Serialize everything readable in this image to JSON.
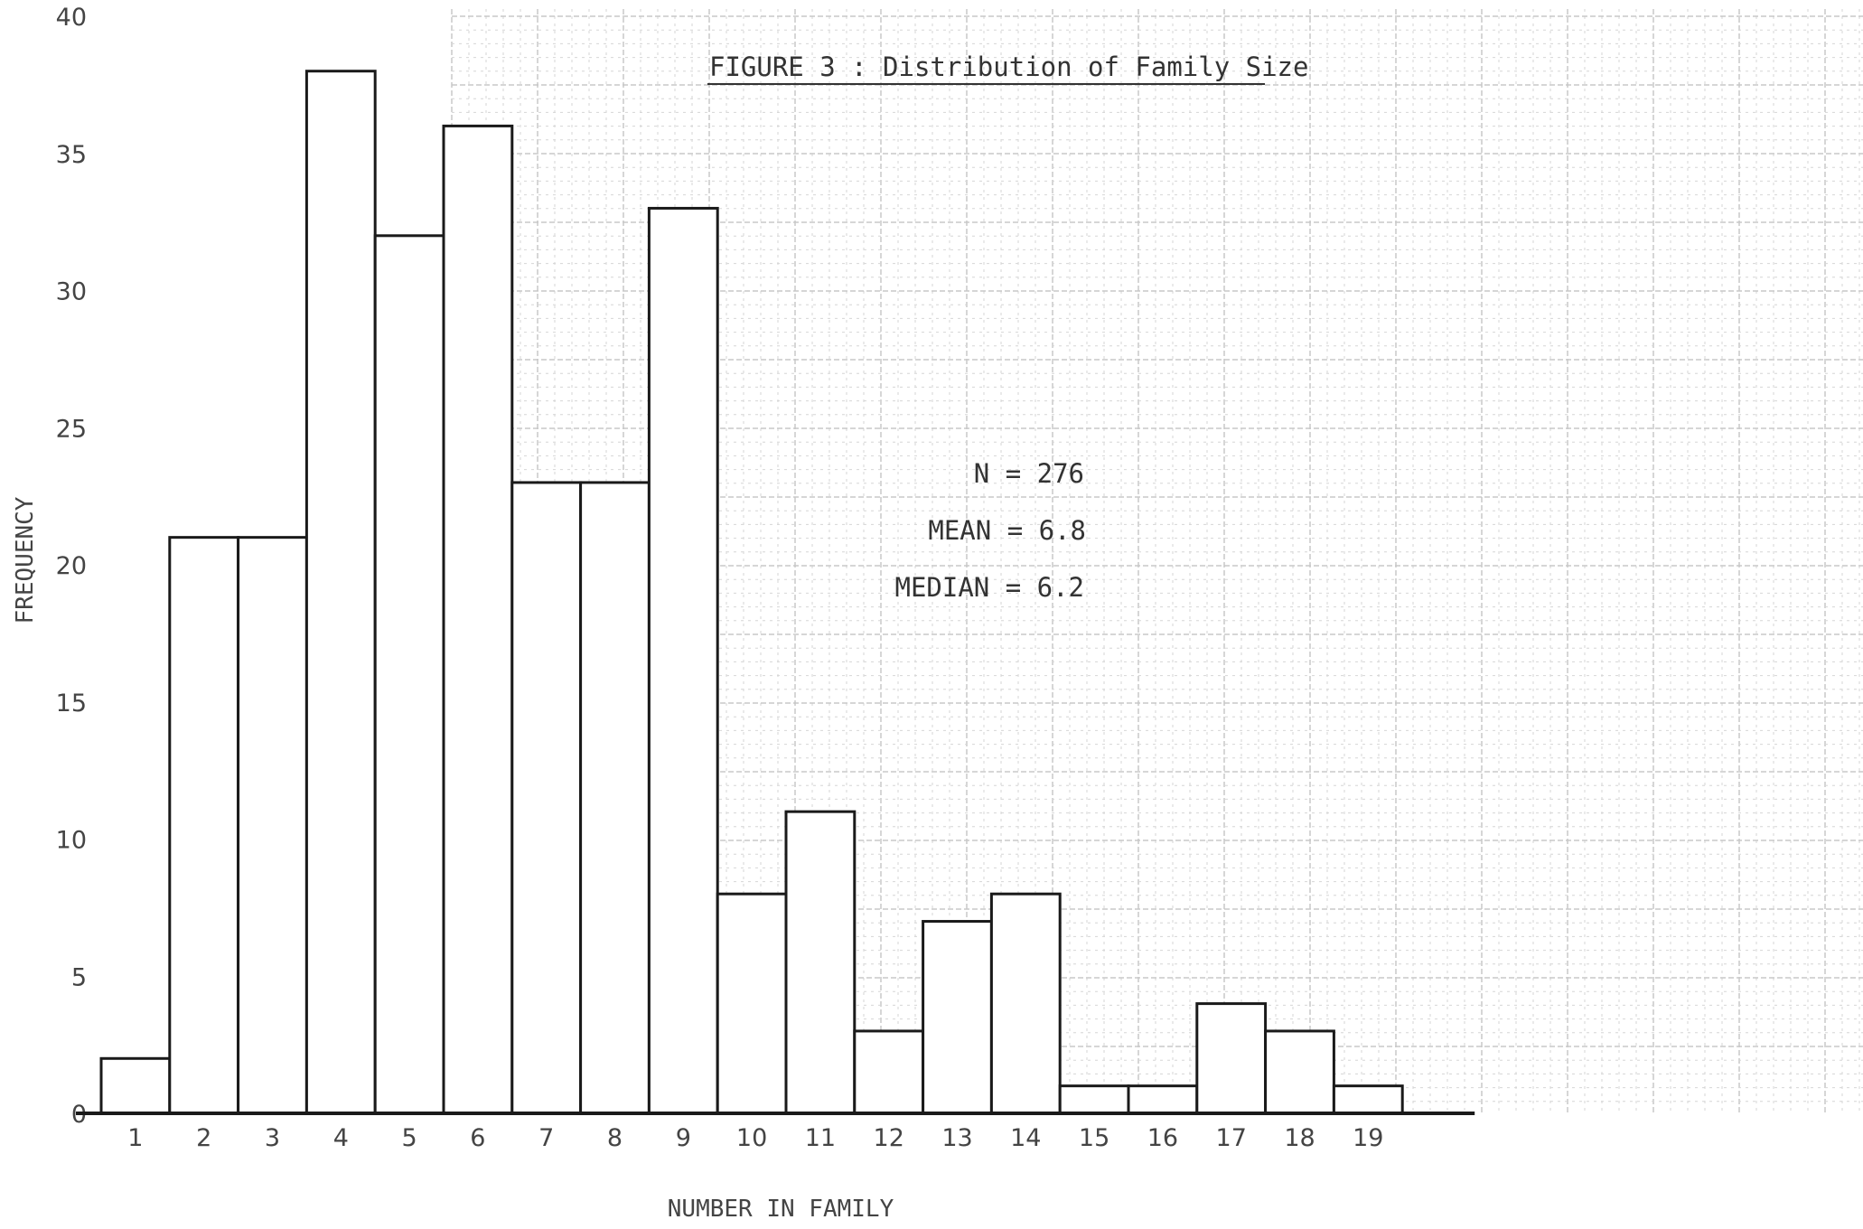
{
  "chart_data": {
    "type": "bar",
    "title": "FIGURE 3 : Distribution of Family Size",
    "xlabel": "NUMBER IN FAMILY",
    "ylabel": "FREQUENCY",
    "categories": [
      "1",
      "2",
      "3",
      "4",
      "5",
      "6",
      "7",
      "8",
      "9",
      "10",
      "11",
      "12",
      "13",
      "14",
      "15",
      "16",
      "17",
      "18",
      "19"
    ],
    "values": [
      2,
      21,
      21,
      38,
      32,
      36,
      23,
      23,
      33,
      8,
      11,
      3,
      7,
      8,
      1,
      1,
      4,
      3,
      1
    ],
    "ylim": [
      0,
      40
    ],
    "yticks": [
      "0",
      "5",
      "10",
      "15",
      "20",
      "25",
      "30",
      "35",
      "40"
    ],
    "grid": "graph paper background",
    "annotations": {
      "n": "N = 276",
      "mean": "MEAN = 6.8",
      "median": "MEDIAN = 6.2"
    },
    "colors": {
      "bar_fill": "#ffffff",
      "bar_stroke": "#1a1a1a",
      "grid": "#d0d0d0"
    }
  }
}
